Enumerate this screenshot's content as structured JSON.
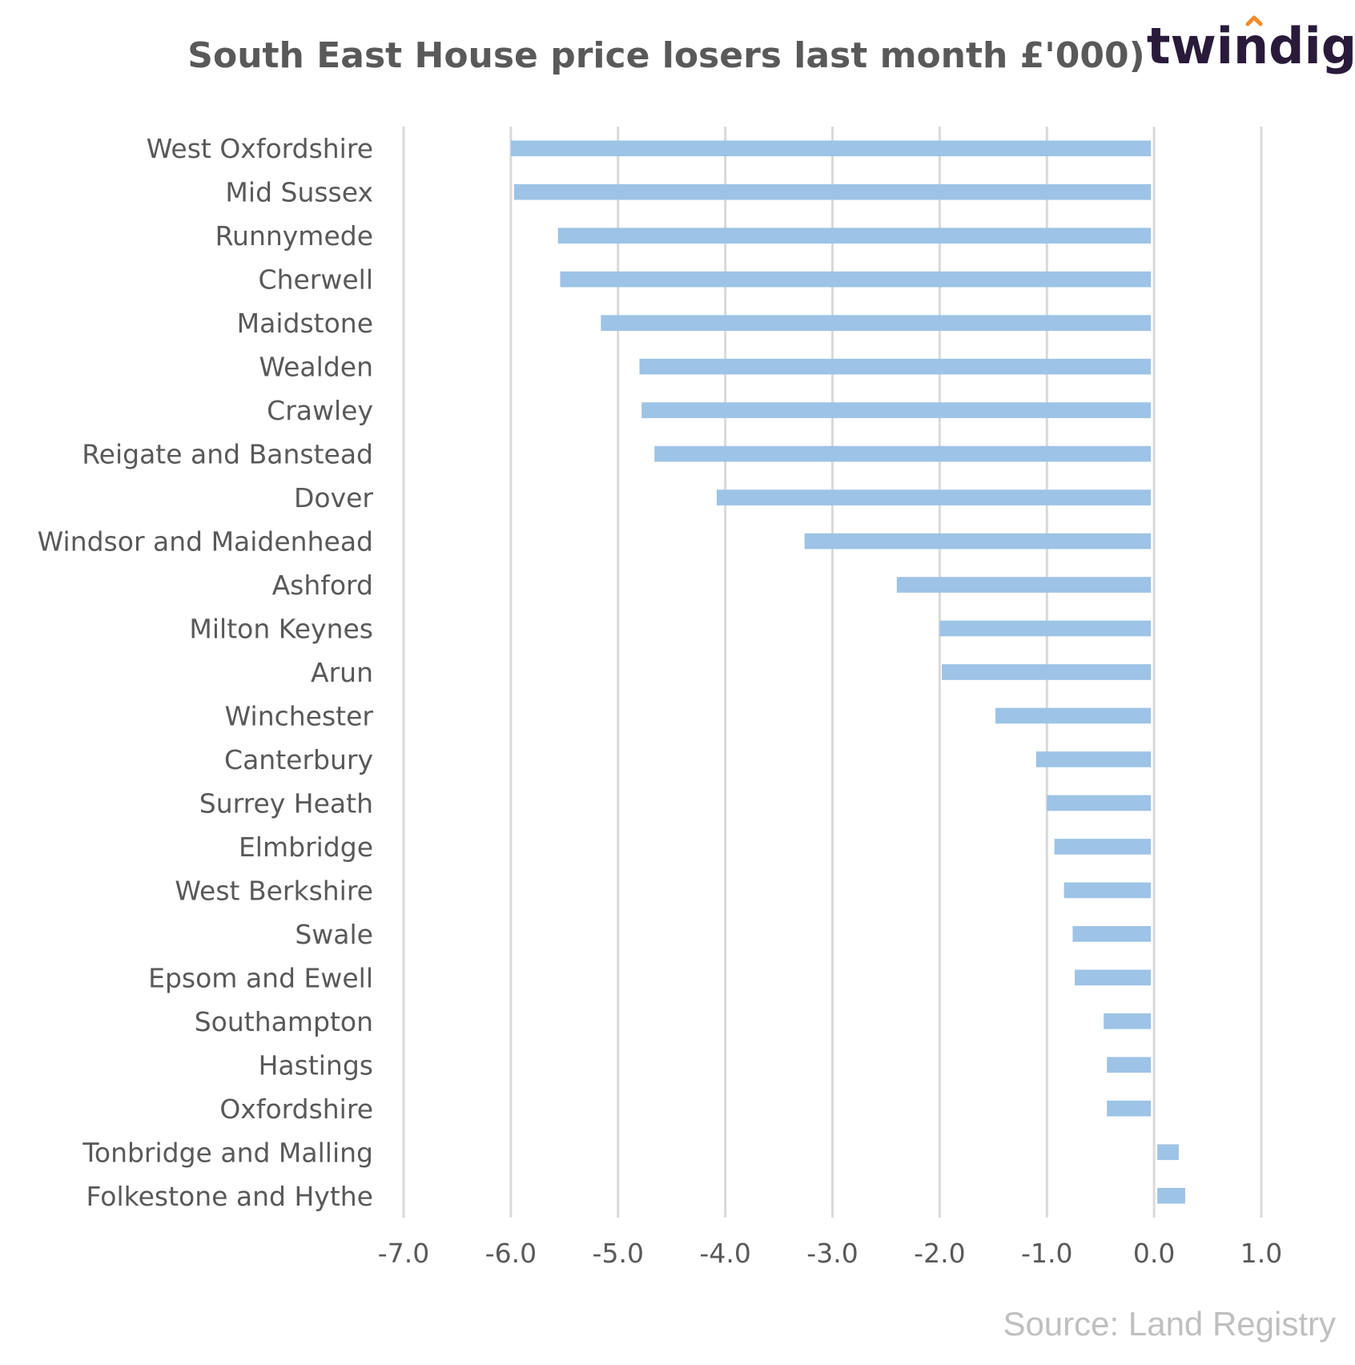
{
  "logo": {
    "text": "twindig",
    "accent_color": "#f28c28"
  },
  "source": "Source: Land Registry",
  "colors": {
    "bar": "#9dc3e6",
    "grid": "#d9d9d9",
    "text": "#595959"
  },
  "chart_data": {
    "type": "bar",
    "orientation": "horizontal",
    "title": "South East House price losers last month £'000)",
    "xlabel": "",
    "ylabel": "",
    "xlim": [
      -7.0,
      1.0
    ],
    "xticks": [
      "-7.0",
      "-6.0",
      "-5.0",
      "-4.0",
      "-3.0",
      "-2.0",
      "-1.0",
      "0.0",
      "1.0"
    ],
    "grid": "vertical",
    "legend": "none",
    "categories": [
      "West Oxfordshire",
      "Mid Sussex",
      "Runnymede",
      "Cherwell",
      "Maidstone",
      "Wealden",
      "Crawley",
      "Reigate and Banstead",
      "Dover",
      "Windsor and Maidenhead",
      "Ashford",
      "Milton Keynes",
      "Arun",
      "Winchester",
      "Canterbury",
      "Surrey Heath",
      "Elmbridge",
      "West Berkshire",
      "Swale",
      "Epsom and Ewell",
      "Southampton",
      "Hastings",
      "Oxfordshire",
      "Tonbridge and Malling",
      "Folkestone and Hythe"
    ],
    "values": [
      -6.0,
      -5.97,
      -5.56,
      -5.54,
      -5.16,
      -4.8,
      -4.78,
      -4.66,
      -4.08,
      -3.26,
      -2.4,
      -2.0,
      -1.98,
      -1.48,
      -1.1,
      -1.0,
      -0.93,
      -0.84,
      -0.76,
      -0.74,
      -0.47,
      -0.44,
      -0.44,
      0.23,
      0.29
    ]
  }
}
